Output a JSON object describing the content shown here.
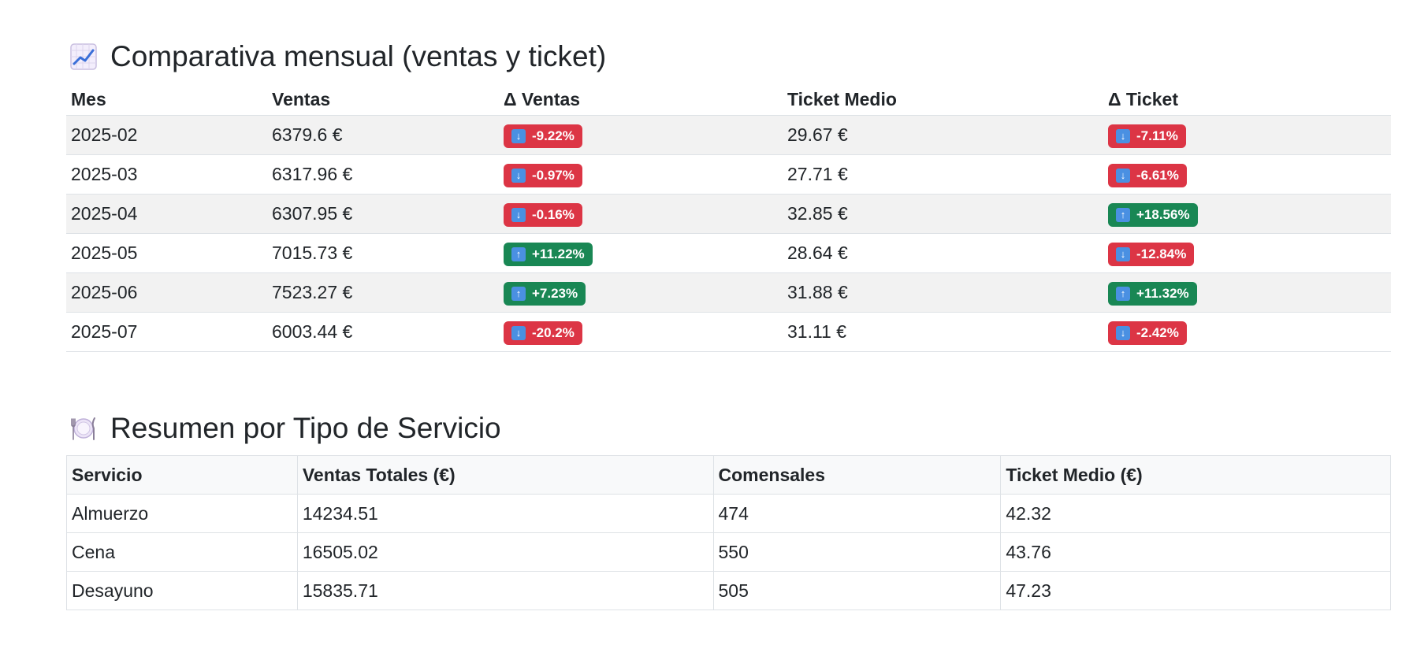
{
  "comparativa": {
    "title": "Comparativa mensual (ventas y ticket)",
    "icon": "chart-increasing-icon",
    "headers": [
      "Mes",
      "Ventas",
      "Δ Ventas",
      "Ticket Medio",
      "Δ Ticket"
    ],
    "rows": [
      {
        "mes": "2025-02",
        "ventas": "6379.6 €",
        "delta_ventas": "-9.22%",
        "ventas_dir": "down",
        "ticket": "29.67 €",
        "delta_ticket": "-7.11%",
        "ticket_dir": "down"
      },
      {
        "mes": "2025-03",
        "ventas": "6317.96 €",
        "delta_ventas": "-0.97%",
        "ventas_dir": "down",
        "ticket": "27.71 €",
        "delta_ticket": "-6.61%",
        "ticket_dir": "down"
      },
      {
        "mes": "2025-04",
        "ventas": "6307.95 €",
        "delta_ventas": "-0.16%",
        "ventas_dir": "down",
        "ticket": "32.85 €",
        "delta_ticket": "+18.56%",
        "ticket_dir": "up"
      },
      {
        "mes": "2025-05",
        "ventas": "7015.73 €",
        "delta_ventas": "+11.22%",
        "ventas_dir": "up",
        "ticket": "28.64 €",
        "delta_ticket": "-12.84%",
        "ticket_dir": "down"
      },
      {
        "mes": "2025-06",
        "ventas": "7523.27 €",
        "delta_ventas": "+7.23%",
        "ventas_dir": "up",
        "ticket": "31.88 €",
        "delta_ticket": "+11.32%",
        "ticket_dir": "up"
      },
      {
        "mes": "2025-07",
        "ventas": "6003.44 €",
        "delta_ventas": "-20.2%",
        "ventas_dir": "down",
        "ticket": "31.11 €",
        "delta_ticket": "-2.42%",
        "ticket_dir": "down"
      }
    ]
  },
  "servicio": {
    "title": "Resumen por Tipo de Servicio",
    "icon": "plate-fork-knife-icon",
    "headers": [
      "Servicio",
      "Ventas Totales (€)",
      "Comensales",
      "Ticket Medio (€)"
    ],
    "rows": [
      {
        "servicio": "Almuerzo",
        "ventas": "14234.51",
        "comensales": "474",
        "ticket": "42.32"
      },
      {
        "servicio": "Cena",
        "ventas": "16505.02",
        "comensales": "550",
        "ticket": "43.76"
      },
      {
        "servicio": "Desayuno",
        "ventas": "15835.71",
        "comensales": "505",
        "ticket": "47.23"
      }
    ]
  },
  "colors": {
    "down": "#dc3545",
    "up": "#198754",
    "row_stripe": "#f2f2f2"
  }
}
